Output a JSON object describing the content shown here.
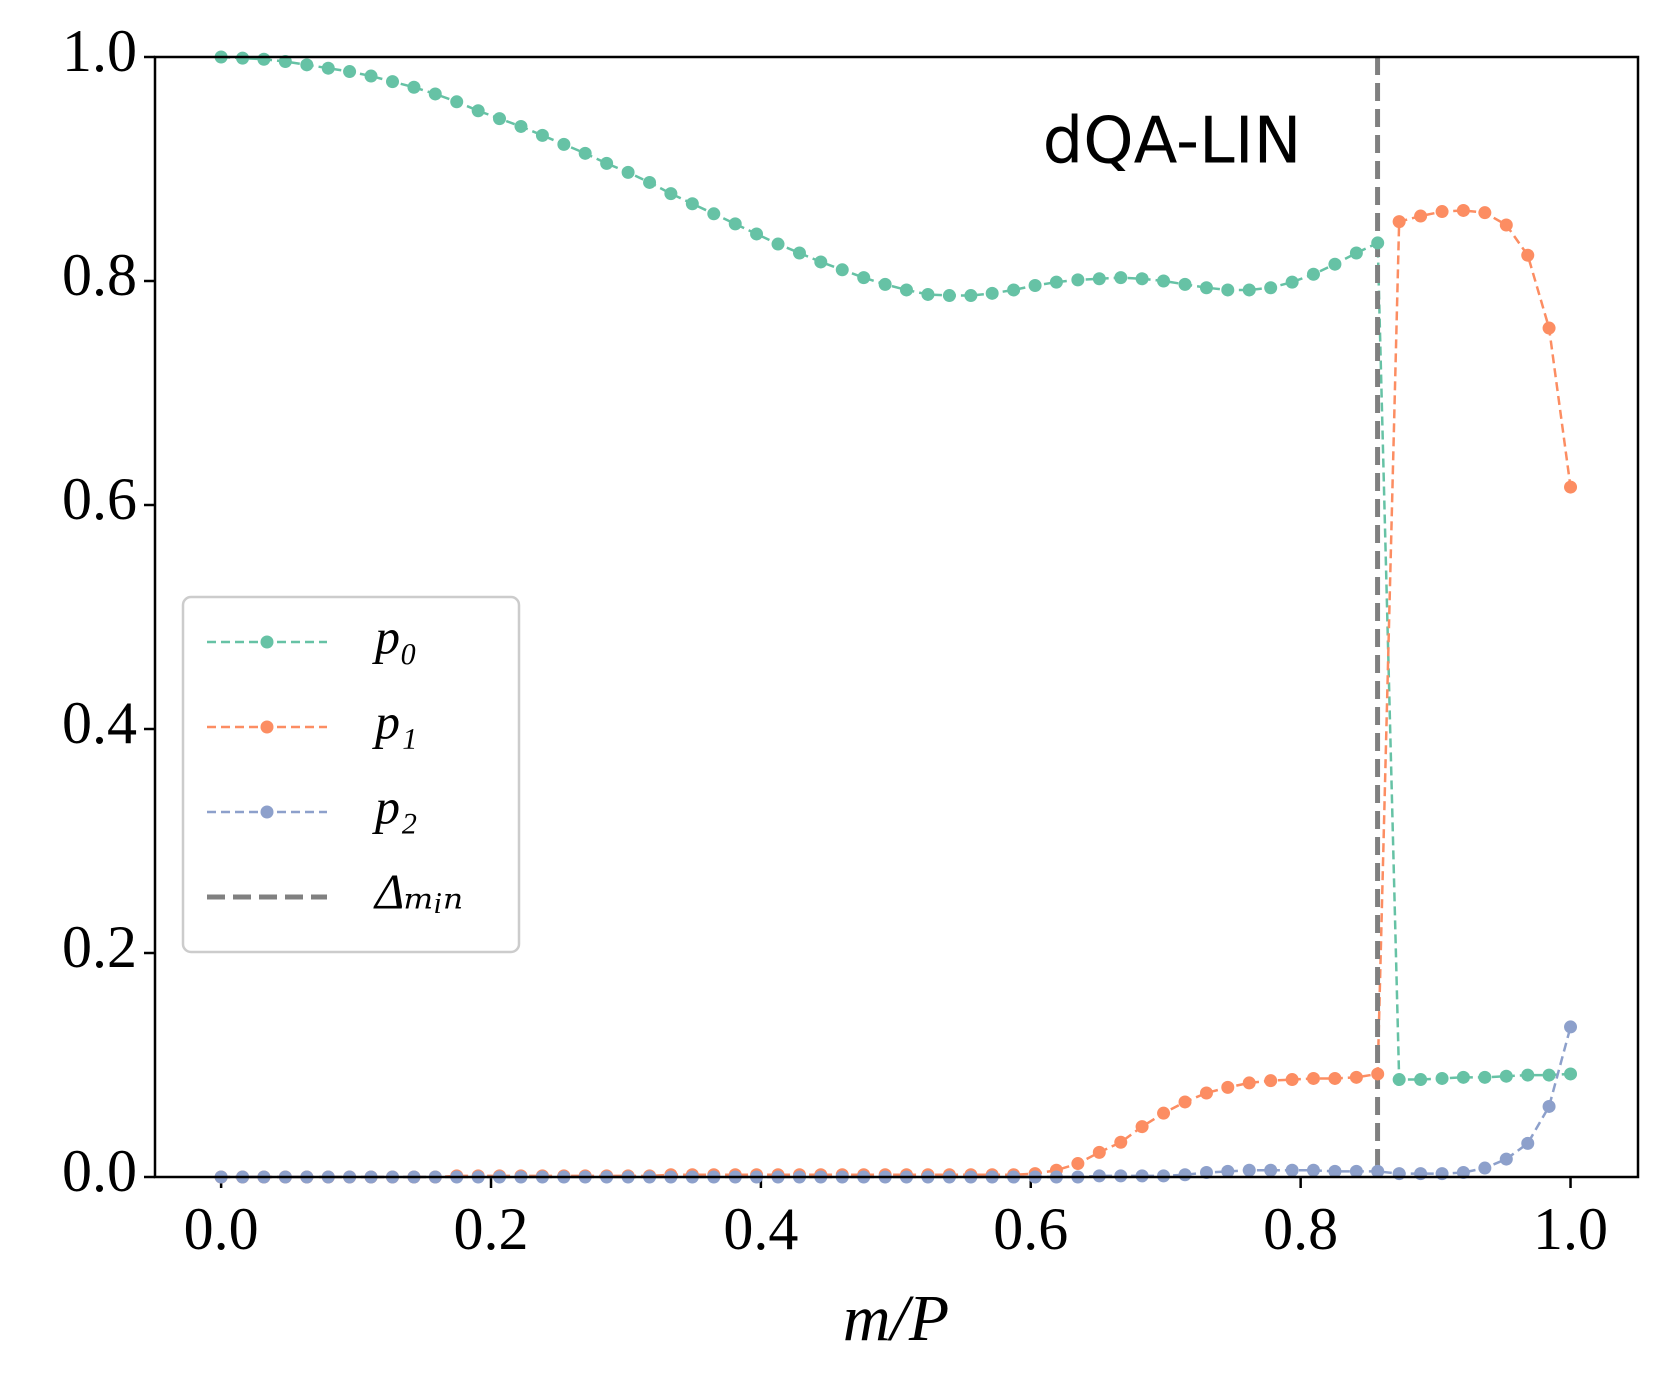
{
  "chart_data": {
    "type": "line",
    "annotation": "dQA-LIN",
    "xlabel": "m/P",
    "x": [
      0,
      0.0159,
      0.0317,
      0.0476,
      0.0635,
      0.0794,
      0.0952,
      0.1111,
      0.127,
      0.1429,
      0.1587,
      0.1746,
      0.1905,
      0.2063,
      0.2222,
      0.2381,
      0.254,
      0.2698,
      0.2857,
      0.3016,
      0.3175,
      0.3333,
      0.3492,
      0.3651,
      0.381,
      0.3968,
      0.4127,
      0.4286,
      0.4444,
      0.4603,
      0.4762,
      0.4921,
      0.5079,
      0.5238,
      0.5397,
      0.5556,
      0.5714,
      0.5873,
      0.6032,
      0.619,
      0.6349,
      0.6508,
      0.6667,
      0.6825,
      0.6984,
      0.7143,
      0.7302,
      0.746,
      0.7619,
      0.7778,
      0.7937,
      0.8095,
      0.8254,
      0.8413,
      0.8571,
      0.873,
      0.8889,
      0.9048,
      0.9206,
      0.9365,
      0.9524,
      0.9683,
      0.9841,
      1
    ],
    "series": [
      {
        "name": "p₀",
        "color": "#66c2a5",
        "values": [
          1.0,
          0.999,
          0.998,
          0.996,
          0.993,
          0.99,
          0.987,
          0.983,
          0.978,
          0.973,
          0.967,
          0.96,
          0.952,
          0.945,
          0.938,
          0.93,
          0.922,
          0.914,
          0.905,
          0.897,
          0.888,
          0.878,
          0.869,
          0.86,
          0.851,
          0.842,
          0.833,
          0.825,
          0.817,
          0.81,
          0.803,
          0.797,
          0.792,
          0.788,
          0.787,
          0.787,
          0.789,
          0.792,
          0.796,
          0.799,
          0.801,
          0.802,
          0.803,
          0.802,
          0.8,
          0.797,
          0.794,
          0.792,
          0.792,
          0.794,
          0.799,
          0.806,
          0.815,
          0.825,
          0.834,
          0.087,
          0.087,
          0.088,
          0.089,
          0.089,
          0.09,
          0.091,
          0.091,
          0.092
        ]
      },
      {
        "name": "p₁",
        "color": "#fc8d62",
        "values": [
          0,
          0,
          0,
          0,
          0,
          0,
          0,
          0,
          0,
          0,
          0,
          0.001,
          0.001,
          0.001,
          0.001,
          0.001,
          0.001,
          0.001,
          0.001,
          0.001,
          0.001,
          0.002,
          0.002,
          0.002,
          0.002,
          0.002,
          0.002,
          0.002,
          0.002,
          0.002,
          0.002,
          0.002,
          0.002,
          0.002,
          0.002,
          0.002,
          0.002,
          0.002,
          0.003,
          0.006,
          0.012,
          0.022,
          0.031,
          0.045,
          0.057,
          0.067,
          0.075,
          0.08,
          0.084,
          0.086,
          0.087,
          0.088,
          0.088,
          0.089,
          0.092,
          0.853,
          0.858,
          0.862,
          0.863,
          0.861,
          0.85,
          0.823,
          0.758,
          0.616
        ]
      },
      {
        "name": "p₂",
        "color": "#8da0cb",
        "values": [
          0,
          0,
          0,
          0,
          0,
          0,
          0,
          0,
          0,
          0,
          0,
          0,
          0,
          0,
          0,
          0,
          0,
          0,
          0,
          0,
          0,
          0,
          0,
          0,
          0,
          0,
          0,
          0,
          0,
          0,
          0,
          0,
          0,
          0,
          0,
          0,
          0,
          0,
          0,
          0,
          0,
          0.001,
          0.001,
          0.001,
          0.001,
          0.002,
          0.004,
          0.005,
          0.006,
          0.006,
          0.006,
          0.006,
          0.005,
          0.005,
          0.005,
          0.003,
          0.003,
          0.003,
          0.004,
          0.008,
          0.016,
          0.03,
          0.063,
          0.134
        ]
      }
    ],
    "vlines": [
      {
        "name": "Δₘᵢₙ",
        "x": 0.857,
        "color": "#808080"
      }
    ],
    "xlim": [
      -0.049,
      1.05
    ],
    "ylim": [
      0,
      1
    ],
    "xticks": [
      {
        "value": 0,
        "label": "0.0"
      },
      0.2,
      0.4,
      0.6,
      0.8,
      {
        "value": 1,
        "label": "1.0"
      }
    ],
    "yticks": [
      {
        "value": 0,
        "label": "0.0"
      },
      0.2,
      0.4,
      0.6,
      0.8,
      {
        "value": 1,
        "label": "1.0"
      }
    ],
    "legend": "center left"
  }
}
